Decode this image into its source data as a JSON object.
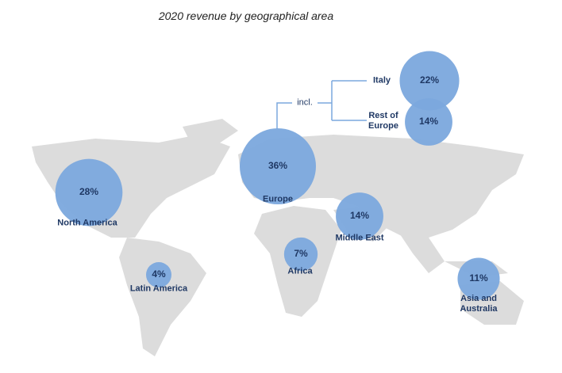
{
  "chart_data": {
    "type": "bubble-map",
    "title": "2020 revenue by geographical area",
    "color": "#7ba8dd",
    "categories": [
      "North America",
      "Latin America",
      "Europe",
      "Africa",
      "Middle East",
      "Asia and Australia"
    ],
    "values": [
      28,
      4,
      36,
      7,
      14,
      11
    ],
    "value_labels": [
      "28%",
      "4%",
      "36%",
      "7%",
      "14%",
      "11%"
    ],
    "breakdown": {
      "label": "incl.",
      "categories": [
        "Italy",
        "Rest of Europe"
      ],
      "values": [
        22,
        14
      ],
      "value_labels": [
        "22%",
        "14%"
      ]
    }
  }
}
